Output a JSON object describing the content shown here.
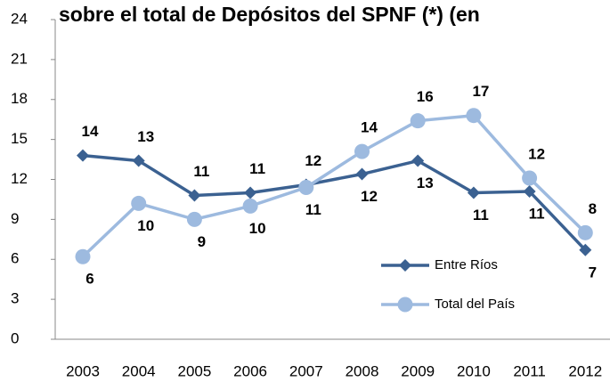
{
  "chart_data": {
    "type": "line",
    "title": "sobre el total de Depósitos del SPNF (*) (en",
    "categories": [
      "2003",
      "2004",
      "2005",
      "2006",
      "2007",
      "2008",
      "2009",
      "2010",
      "2011",
      "2012"
    ],
    "series": [
      {
        "name": "Entre Ríos",
        "color": "#3b6191",
        "marker": "diamond",
        "values": [
          13.8,
          13.4,
          10.8,
          11.0,
          11.6,
          12.4,
          13.4,
          11.0,
          11.1,
          6.7
        ],
        "value_labels": [
          "14",
          "13",
          "11",
          "11",
          "12",
          "12",
          "13",
          "11",
          "11",
          "7"
        ]
      },
      {
        "name": "Total del País",
        "color": "#9dbadf",
        "marker": "circle",
        "values": [
          6.2,
          10.2,
          9.0,
          10.0,
          11.4,
          14.1,
          16.4,
          16.8,
          12.1,
          8.0
        ],
        "value_labels": [
          "6",
          "10",
          "9",
          "10",
          "11",
          "14",
          "16",
          "17",
          "12",
          "8"
        ]
      }
    ],
    "ylim": [
      0,
      24
    ],
    "yticks": [
      0,
      3,
      6,
      9,
      12,
      15,
      18,
      21,
      24
    ],
    "grid": false,
    "legend": "lower right"
  }
}
